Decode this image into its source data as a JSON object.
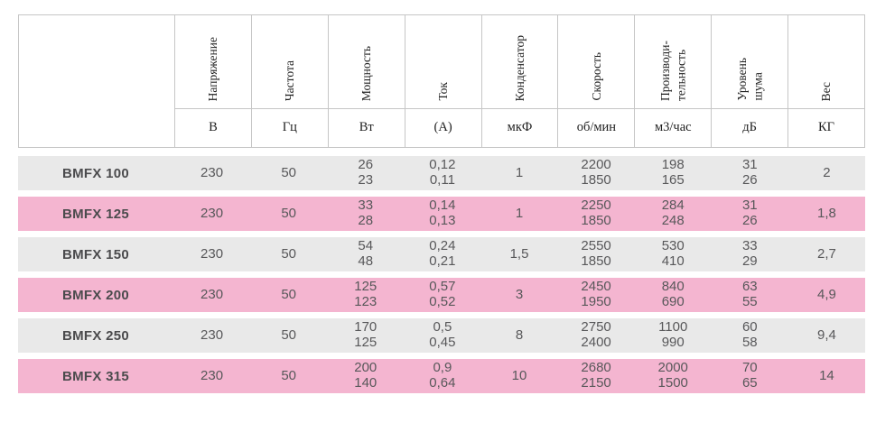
{
  "colors": {
    "row_gray": "#e9e9e9",
    "row_pink": "#f4b5d0",
    "border": "#c6c6c6",
    "header_text": "#1f1f1f",
    "value_text": "#58585a"
  },
  "table": {
    "columns": [
      {
        "label": "Напряжение",
        "unit": "В"
      },
      {
        "label": "Частота",
        "unit": "Гц"
      },
      {
        "label": "Мощность",
        "unit": "Вт"
      },
      {
        "label": "Ток",
        "unit": "(А)"
      },
      {
        "label": "Конденсатор",
        "unit": "мкФ"
      },
      {
        "label": "Скорость",
        "unit": "об/мин"
      },
      {
        "label": "Производи-\nтельность",
        "unit": "м3/час"
      },
      {
        "label": "Уровень\nшума",
        "unit": "дБ"
      },
      {
        "label": "Вес",
        "unit": "КГ"
      }
    ],
    "rows": [
      {
        "model": "BMFX 100",
        "values": [
          "230",
          "50",
          "26\n23",
          "0,12\n0,11",
          "1",
          "2200\n1850",
          "198\n165",
          "31\n26",
          "2"
        ]
      },
      {
        "model": "BMFX 125",
        "values": [
          "230",
          "50",
          "33\n28",
          "0,14\n0,13",
          "1",
          "2250\n1850",
          "284\n248",
          "31\n26",
          "1,8"
        ]
      },
      {
        "model": "BMFX 150",
        "values": [
          "230",
          "50",
          "54\n48",
          "0,24\n0,21",
          "1,5",
          "2550\n1850",
          "530\n410",
          "33\n29",
          "2,7"
        ]
      },
      {
        "model": "BMFX 200",
        "values": [
          "230",
          "50",
          "125\n123",
          "0,57\n0,52",
          "3",
          "2450\n1950",
          "840\n690",
          "63\n55",
          "4,9"
        ]
      },
      {
        "model": "BMFX 250",
        "values": [
          "230",
          "50",
          "170\n125",
          "0,5\n0,45",
          "8",
          "2750\n2400",
          "1100\n990",
          "60\n58",
          "9,4"
        ]
      },
      {
        "model": "BMFX 315",
        "values": [
          "230",
          "50",
          "200\n140",
          "0,9\n0,64",
          "10",
          "2680\n2150",
          "2000\n1500",
          "70\n65",
          "14"
        ]
      }
    ]
  }
}
